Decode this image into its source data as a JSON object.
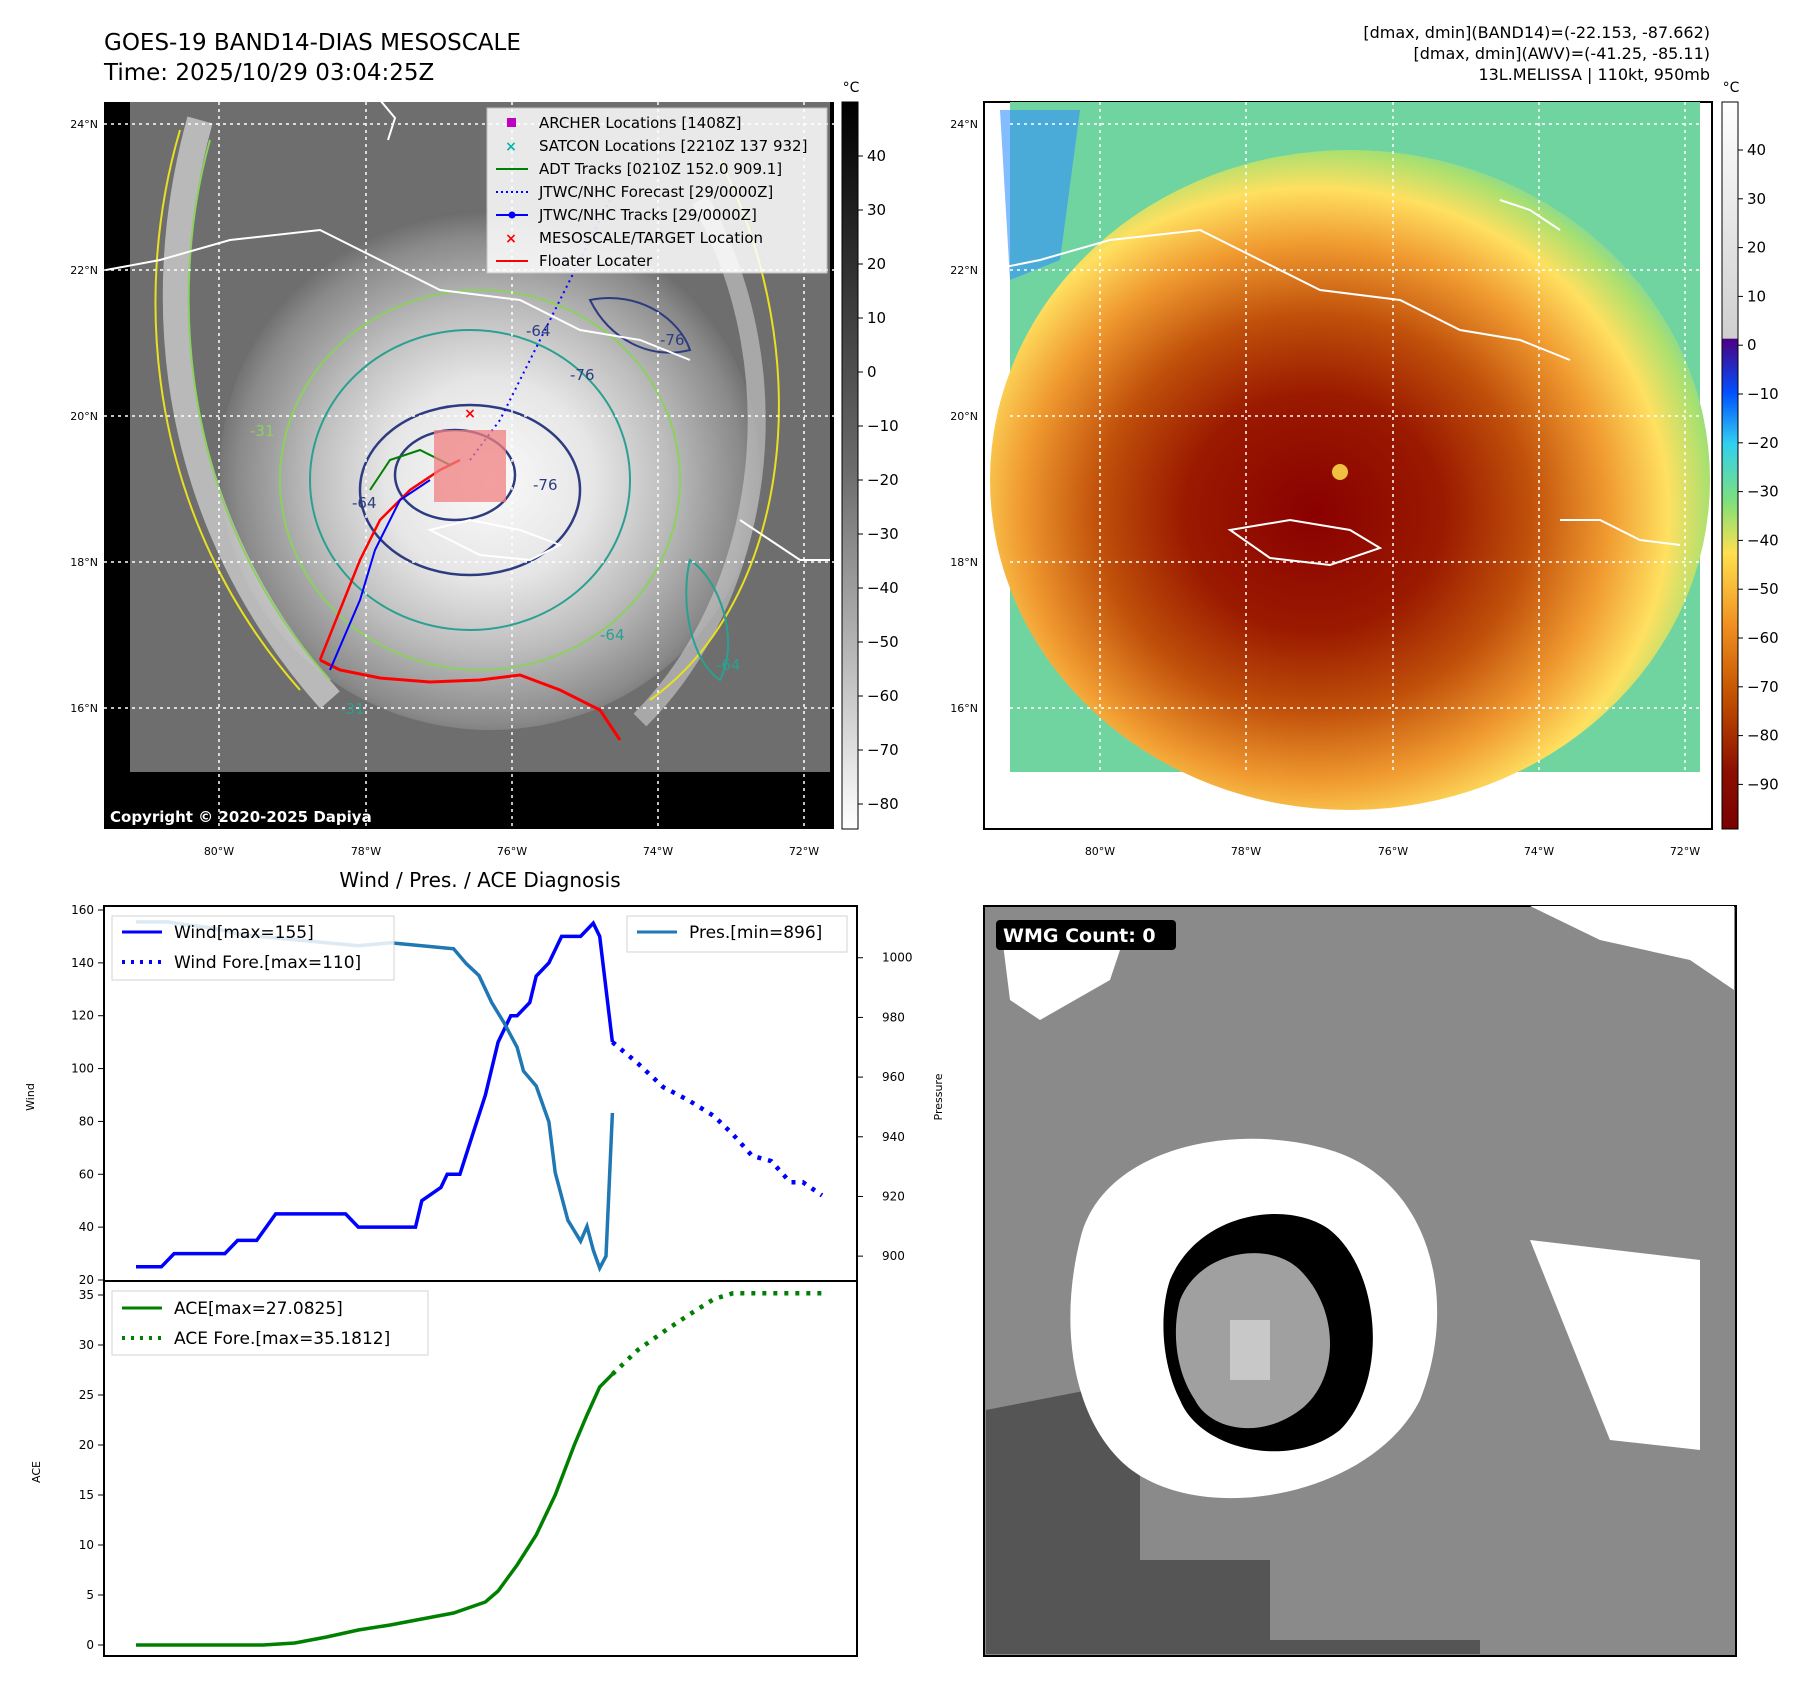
{
  "header": {
    "title_line1": "GOES-19 BAND14-DIAS MESOSCALE",
    "title_line2": "Time: 2025/10/29 03:04:25Z",
    "info_line1": "[dmax, dmin](BAND14)=(-22.153, -87.662)",
    "info_line2": "[dmax, dmin](AWV)=(-41.25, -85.11)",
    "info_line3": "13L.MELISSA | 110kt, 950mb"
  },
  "maps": {
    "lon_ticks": [
      "80°W",
      "78°W",
      "76°W",
      "74°W",
      "72°W"
    ],
    "lat_ticks": [
      "24°N",
      "22°N",
      "20°N",
      "18°N",
      "16°N"
    ],
    "unit": "°C",
    "cbar_gray_ticks": [
      "40",
      "30",
      "20",
      "10",
      "0",
      "−10",
      "−20",
      "−30",
      "−40",
      "−50",
      "−60",
      "−70",
      "−80"
    ],
    "cbar_color_ticks": [
      "40",
      "30",
      "20",
      "10",
      "0",
      "−10",
      "−20",
      "−30",
      "−40",
      "−50",
      "−60",
      "−70",
      "−80",
      "−90"
    ],
    "copyright": "Copyright © 2020-2025 Dapiya",
    "contour_labels": [
      "-64",
      "-76",
      "-76",
      "-76",
      "-64",
      "-31",
      "-31",
      "-64",
      "-64"
    ],
    "legend": [
      {
        "label": "ARCHER Locations [1408Z]",
        "color": "#c000c0",
        "marker": "square"
      },
      {
        "label": "SATCON Locations [2210Z 137 932]",
        "color": "#00b5b5",
        "marker": "x"
      },
      {
        "label": "ADT Tracks [0210Z 152.0 909.1]",
        "color": "#008000",
        "marker": "line"
      },
      {
        "label": "JTWC/NHC Forecast [29/0000Z]",
        "color": "#0000ff",
        "marker": "dotted"
      },
      {
        "label": "JTWC/NHC Tracks [29/0000Z]",
        "color": "#0000ff",
        "marker": "line-dot"
      },
      {
        "label": "MESOSCALE/TARGET Location",
        "color": "#ff0000",
        "marker": "x"
      },
      {
        "label": "Floater Locater",
        "color": "#ff0000",
        "marker": "line"
      }
    ]
  },
  "diagnosis": {
    "title": "Wind / Pres. / ACE Diagnosis",
    "wind_label": "Wind",
    "pressure_label": "Pressure",
    "ace_label": "ACE",
    "wind_legend": [
      "Wind[max=155]",
      "Wind Fore.[max=110]"
    ],
    "pres_legend": [
      "Pres.[min=896]"
    ],
    "ace_legend": [
      "ACE[max=27.0825]",
      "ACE Fore.[max=35.1812]"
    ],
    "wmg_label": "WMG Count: 0"
  },
  "chart_data": [
    {
      "type": "line",
      "title": "Wind / Pres. / ACE Diagnosis",
      "ylabel": "Wind",
      "ylim": [
        20,
        160
      ],
      "yticks": [
        20,
        40,
        60,
        80,
        100,
        120,
        140,
        160
      ],
      "x_index_range": [
        0,
        100
      ],
      "series": [
        {
          "name": "Wind[max=155]",
          "color": "#0000ff",
          "style": "solid",
          "points": [
            [
              0,
              25
            ],
            [
              4,
              25
            ],
            [
              6,
              30
            ],
            [
              14,
              30
            ],
            [
              16,
              35
            ],
            [
              19,
              35
            ],
            [
              22,
              45
            ],
            [
              33,
              45
            ],
            [
              35,
              40
            ],
            [
              44,
              40
            ],
            [
              45,
              50
            ],
            [
              48,
              55
            ],
            [
              49,
              60
            ],
            [
              51,
              60
            ],
            [
              53,
              75
            ],
            [
              55,
              90
            ],
            [
              57,
              110
            ],
            [
              59,
              120
            ],
            [
              60,
              120
            ],
            [
              62,
              125
            ],
            [
              63,
              135
            ],
            [
              65,
              140
            ],
            [
              67,
              150
            ],
            [
              70,
              150
            ],
            [
              72,
              155
            ],
            [
              73,
              150
            ],
            [
              75,
              110
            ]
          ]
        },
        {
          "name": "Wind Fore.[max=110]",
          "color": "#0000ff",
          "style": "dotted",
          "points": [
            [
              75,
              110
            ],
            [
              79,
              102
            ],
            [
              83,
              93
            ],
            [
              87,
              88
            ],
            [
              91,
              82
            ],
            [
              94,
              75
            ],
            [
              97,
              67
            ],
            [
              100,
              65
            ],
            [
              103,
              57
            ],
            [
              105,
              57
            ],
            [
              108,
              52
            ]
          ]
        }
      ]
    },
    {
      "type": "line",
      "ylabel": "Pressure",
      "ylim": [
        892,
        1016
      ],
      "yticks": [
        900,
        920,
        940,
        960,
        980,
        1000
      ],
      "series": [
        {
          "name": "Pres.[min=896]",
          "color": "#1f77b4",
          "style": "solid",
          "points": [
            [
              0,
              1012
            ],
            [
              5,
              1012
            ],
            [
              8,
              1011
            ],
            [
              12,
              1010
            ],
            [
              16,
              1008
            ],
            [
              20,
              1007
            ],
            [
              25,
              1006
            ],
            [
              30,
              1005
            ],
            [
              35,
              1004
            ],
            [
              40,
              1005
            ],
            [
              45,
              1004
            ],
            [
              50,
              1003
            ],
            [
              52,
              998
            ],
            [
              54,
              994
            ],
            [
              56,
              985
            ],
            [
              58,
              978
            ],
            [
              60,
              970
            ],
            [
              61,
              962
            ],
            [
              63,
              957
            ],
            [
              65,
              945
            ],
            [
              66,
              928
            ],
            [
              68,
              912
            ],
            [
              70,
              905
            ],
            [
              71,
              910
            ],
            [
              72,
              902
            ],
            [
              73,
              896
            ],
            [
              74,
              900
            ],
            [
              75,
              948
            ]
          ]
        }
      ]
    },
    {
      "type": "line",
      "ylabel": "ACE",
      "ylim": [
        -1,
        36
      ],
      "yticks": [
        0,
        5,
        10,
        15,
        20,
        25,
        30,
        35
      ],
      "series": [
        {
          "name": "ACE[max=27.0825]",
          "color": "#008000",
          "style": "solid",
          "points": [
            [
              0,
              0
            ],
            [
              10,
              0
            ],
            [
              20,
              0
            ],
            [
              25,
              0.2
            ],
            [
              30,
              0.8
            ],
            [
              35,
              1.5
            ],
            [
              40,
              2
            ],
            [
              45,
              2.6
            ],
            [
              50,
              3.2
            ],
            [
              55,
              4.3
            ],
            [
              57,
              5.4
            ],
            [
              60,
              8
            ],
            [
              63,
              11
            ],
            [
              66,
              15
            ],
            [
              69,
              20
            ],
            [
              71,
              23
            ],
            [
              73,
              25.8
            ],
            [
              75,
              27.08
            ]
          ]
        },
        {
          "name": "ACE Fore.[max=35.1812]",
          "color": "#008000",
          "style": "dotted",
          "points": [
            [
              75,
              27.08
            ],
            [
              79,
              29.5
            ],
            [
              83,
              31.3
            ],
            [
              87,
              33
            ],
            [
              91,
              34.6
            ],
            [
              94,
              35.18
            ],
            [
              108,
              35.18
            ]
          ]
        }
      ]
    }
  ],
  "colors": {
    "wind": "#0000ff",
    "pressure": "#1f77b4",
    "ace": "#008000",
    "target": "#ff0000",
    "archer": "#c000c0",
    "satcon": "#00b5b5"
  }
}
